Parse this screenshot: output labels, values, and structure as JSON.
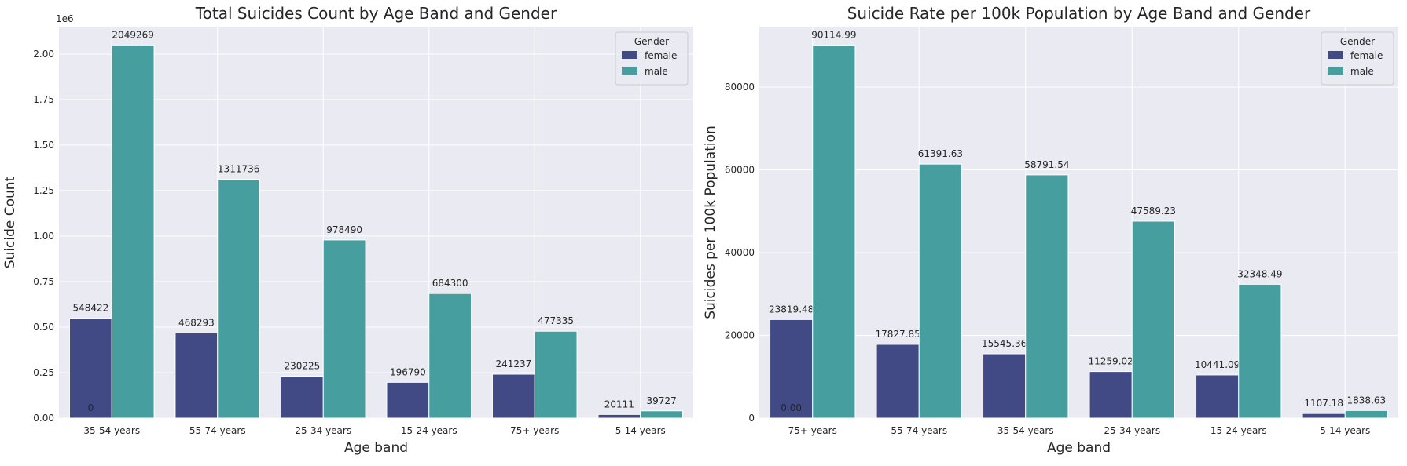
{
  "colors": {
    "plot_bg": "#eaeaf2",
    "grid": "#ffffff",
    "female": "#414a84",
    "male": "#469e9e",
    "text": "#262626"
  },
  "chart_data": [
    {
      "type": "bar",
      "title": "Total Suicides Count by Age Band and Gender",
      "xlabel": "Age band",
      "ylabel": "Suicide Count",
      "offset_label": "1e6",
      "categories": [
        "35-54 years",
        "55-74 years",
        "25-34 years",
        "15-24 years",
        "75+ years",
        "5-14 years"
      ],
      "series": [
        {
          "name": "female",
          "values": [
            548422,
            468293,
            230225,
            196790,
            241237,
            20111
          ]
        },
        {
          "name": "male",
          "values": [
            2049269,
            1311736,
            978490,
            684300,
            477335,
            39727
          ]
        }
      ],
      "bar_labels": {
        "female": [
          "548422",
          "468293",
          "230225",
          "196790",
          "241237",
          "20111"
        ],
        "male": [
          "2049269",
          "1311736",
          "978490",
          "684300",
          "477335",
          "39727"
        ]
      },
      "extra_label": "0",
      "ylim": [
        0,
        2150000
      ],
      "yticks": [
        0,
        250000,
        500000,
        750000,
        1000000,
        1250000,
        1500000,
        1750000,
        2000000
      ],
      "ytick_labels": [
        "0.00",
        "0.25",
        "0.50",
        "0.75",
        "1.00",
        "1.25",
        "1.50",
        "1.75",
        "2.00"
      ],
      "legend": {
        "title": "Gender",
        "entries": [
          "female",
          "male"
        ],
        "position": "top-right"
      },
      "grid": true
    },
    {
      "type": "bar",
      "title": "Suicide Rate per 100k Population by Age Band and Gender",
      "xlabel": "Age band",
      "ylabel": "Suicides per 100k Population",
      "offset_label": "",
      "categories": [
        "75+ years",
        "55-74 years",
        "35-54 years",
        "25-34 years",
        "15-24 years",
        "5-14 years"
      ],
      "series": [
        {
          "name": "female",
          "values": [
            23819.48,
            17827.85,
            15545.36,
            11259.02,
            10441.09,
            1107.18
          ]
        },
        {
          "name": "male",
          "values": [
            90114.99,
            61391.63,
            58791.54,
            47589.23,
            32348.49,
            1838.63
          ]
        }
      ],
      "bar_labels": {
        "female": [
          "23819.48",
          "17827.85",
          "15545.36",
          "11259.02",
          "10441.09",
          "1107.18"
        ],
        "male": [
          "90114.99",
          "61391.63",
          "58791.54",
          "47589.23",
          "32348.49",
          "1838.63"
        ]
      },
      "extra_label": "0.00",
      "ylim": [
        0,
        94600
      ],
      "yticks": [
        0,
        20000,
        40000,
        60000,
        80000
      ],
      "ytick_labels": [
        "0",
        "20000",
        "40000",
        "60000",
        "80000"
      ],
      "legend": {
        "title": "Gender",
        "entries": [
          "female",
          "male"
        ],
        "position": "top-right"
      },
      "grid": true
    }
  ]
}
